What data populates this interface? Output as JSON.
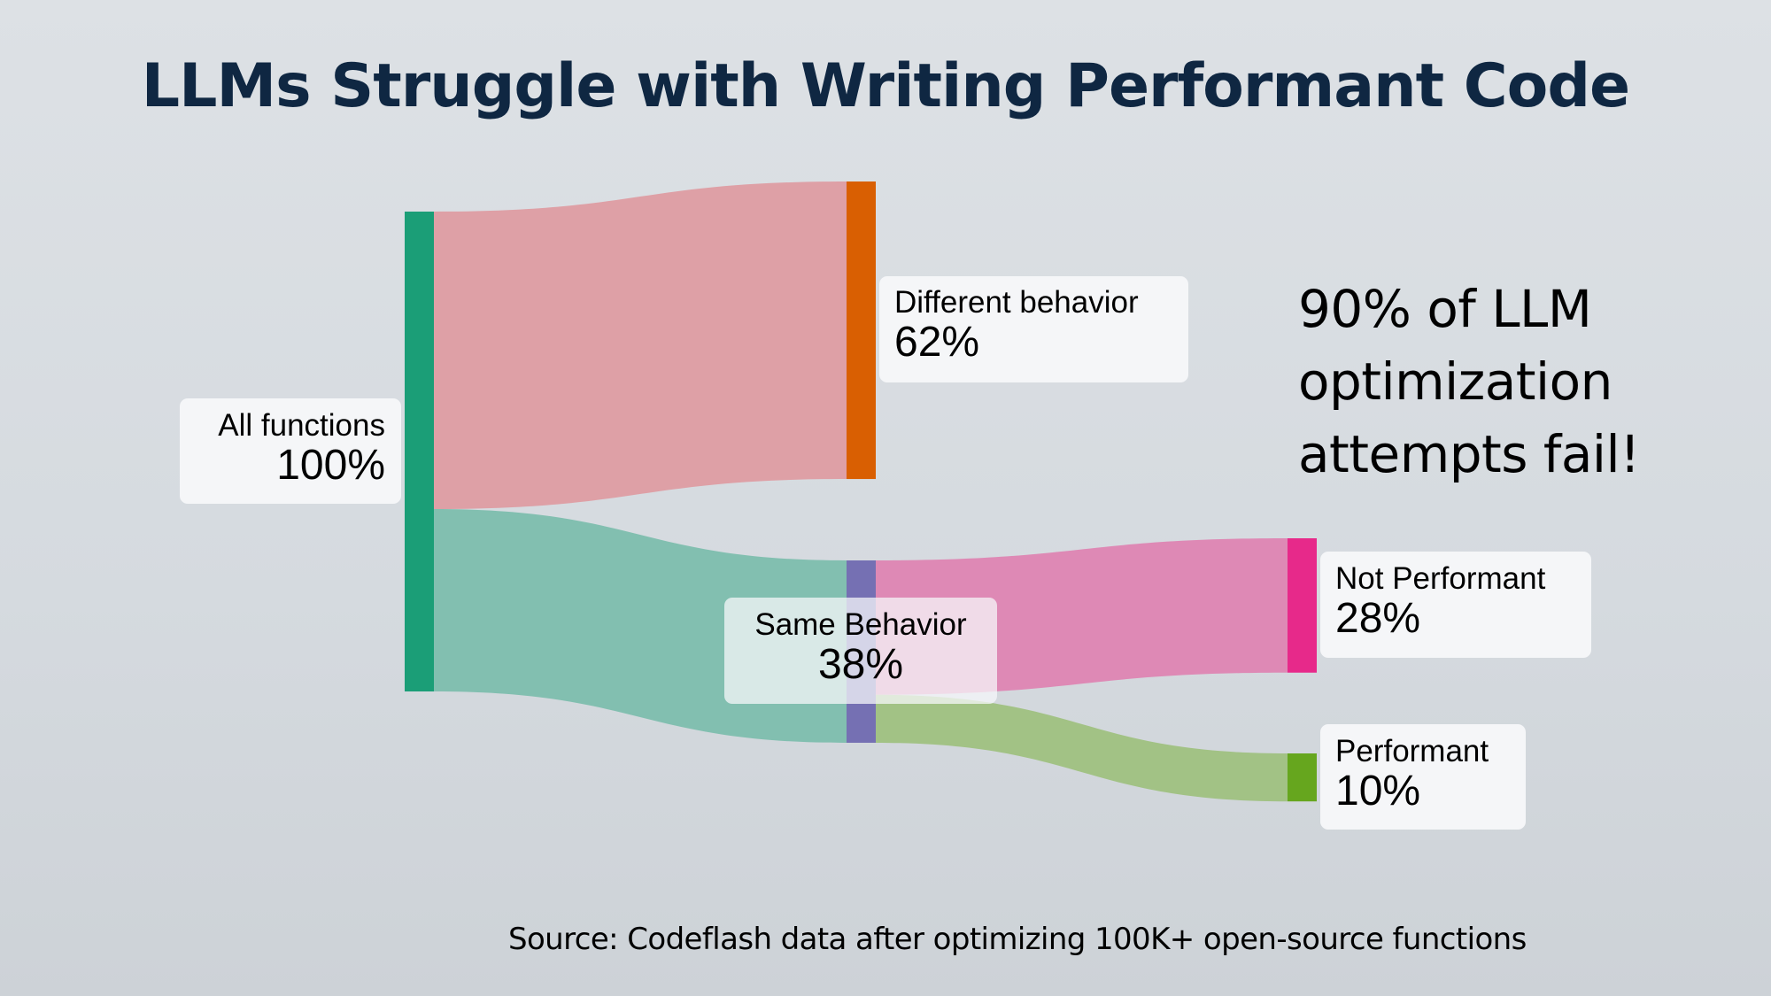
{
  "title": "LLMs Struggle with Writing Performant Code",
  "callout": [
    "90% of LLM",
    "optimization",
    "attempts fail!"
  ],
  "source": "Source: Codeflash data after optimizing 100K+ open-source functions",
  "chart_data": {
    "type": "sankey",
    "title": "LLMs Struggle with Writing Performant Code",
    "units": "percent of all functions",
    "nodes": [
      {
        "id": "all",
        "name": "All functions",
        "value": 100,
        "label": "100%",
        "color": "#1b9e77",
        "column": 0
      },
      {
        "id": "diff",
        "name": "Different behavior",
        "value": 62,
        "label": "62%",
        "color": "#d95f02",
        "column": 1
      },
      {
        "id": "same",
        "name": "Same Behavior",
        "value": 38,
        "label": "38%",
        "color": "#7570b3",
        "column": 1
      },
      {
        "id": "notperf",
        "name": "Not Performant",
        "value": 28,
        "label": "28%",
        "color": "#e7298a",
        "column": 2
      },
      {
        "id": "perf",
        "name": "Performant",
        "value": 10,
        "label": "10%",
        "color": "#66a61e",
        "column": 2
      }
    ],
    "links": [
      {
        "source": "all",
        "target": "diff",
        "value": 62,
        "color": "#dea0a6"
      },
      {
        "source": "all",
        "target": "same",
        "value": 38,
        "color": "#82bfb0"
      },
      {
        "source": "same",
        "target": "notperf",
        "value": 28,
        "color": "#de89b5"
      },
      {
        "source": "same",
        "target": "perf",
        "value": 10,
        "color": "#a2c285"
      }
    ]
  }
}
